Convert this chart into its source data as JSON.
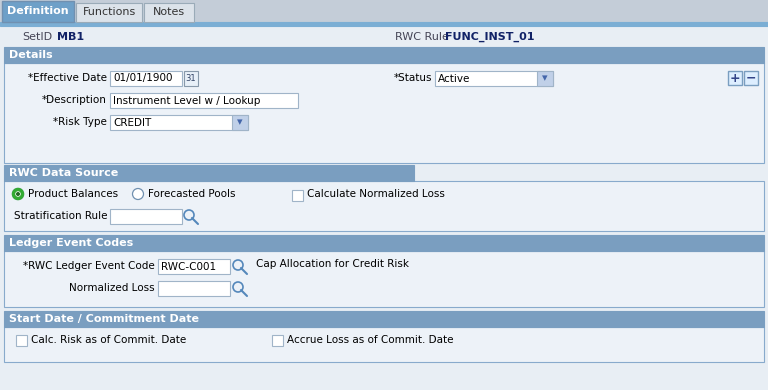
{
  "page_bg": "#e8eef4",
  "content_bg": "#ffffff",
  "tabs": [
    "Definition",
    "Functions",
    "Notes"
  ],
  "tab_active_color": "#6ea0c8",
  "tab_inactive_color": "#d0d8e0",
  "tab_bar_color": "#7baed4",
  "section_header_color": "#7a9ec0",
  "section_header_text_color": "#ffffff",
  "setid_label": "SetID",
  "setid_value": "MB1",
  "rwc_rule_label": "RWC Rule",
  "rwc_rule_value": "FUNC_INST_01",
  "details_header": "Details",
  "eff_date_label": "*Effective Date",
  "eff_date_value": "01/01/1900",
  "status_label": "*Status",
  "status_value": "Active",
  "desc_label": "*Description",
  "desc_value": "Instrument Level w / Lookup",
  "risk_type_label": "*Risk Type",
  "risk_type_value": "CREDIT",
  "rwc_data_source_header": "RWC Data Source",
  "radio1_label": "Product Balances",
  "radio2_label": "Forecasted Pools",
  "checkbox_norm_label": "Calculate Normalized Loss",
  "strat_rule_label": "Stratification Rule",
  "ledger_event_header": "Ledger Event Codes",
  "rwc_ledger_label": "*RWC Ledger Event Code",
  "rwc_ledger_value": "RWC-C001",
  "rwc_ledger_desc": "Cap Allocation for Credit Risk",
  "norm_loss_label": "Normalized Loss",
  "start_date_header": "Start Date / Commitment Date",
  "calc_risk_label": "Calc. Risk as of Commit. Date",
  "accrue_loss_label": "Accrue Loss as of Commit. Date",
  "input_bg": "#ffffff",
  "input_border": "#a0b4c8",
  "dropdown_btn_color": "#c0d0e8",
  "text_color": "#000000",
  "label_color": "#333333",
  "label_bold_color": "#334466",
  "section_border_color": "#88aacc",
  "plus_minus_bg": "#ddeeff",
  "plus_minus_border": "#7a9ec0"
}
